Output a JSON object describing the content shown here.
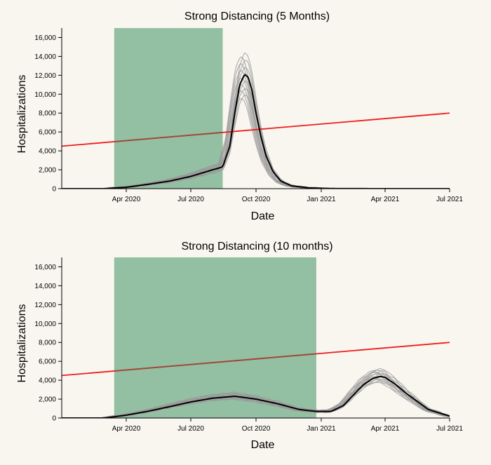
{
  "colors": {
    "background": "#f9f6ef",
    "distancing_band": "#93bfa2",
    "capacity_line": "#ee1c1c",
    "capacity_line_in_band": "#9a4a3a",
    "mean_line": "#000000",
    "ensemble_line": "#999999"
  },
  "chart_data": [
    {
      "type": "line",
      "title": "Strong Distancing (5 Months)",
      "xlabel": "Date",
      "ylabel": "Hospitalizations",
      "xlim": [
        "2020-01-01",
        "2021-07-01"
      ],
      "ylim": [
        0,
        17000
      ],
      "x_ticks": [
        "2020-04-01",
        "2020-07-01",
        "2020-10-01",
        "2021-01-01",
        "2021-04-01",
        "2021-07-01"
      ],
      "x_tick_labels": [
        "Apr 2020",
        "Jul 2020",
        "Oct 2020",
        "Jan 2021",
        "Apr 2021",
        "Jul 2021"
      ],
      "y_ticks": [
        0,
        2000,
        4000,
        6000,
        8000,
        10000,
        12000,
        14000,
        16000
      ],
      "y_tick_labels": [
        "0",
        "2,000",
        "4,000",
        "6,000",
        "8,000",
        "10,000",
        "12,000",
        "14,000",
        "16,000"
      ],
      "grid": false,
      "shaded_region": {
        "start": "2020-03-15",
        "end": "2020-08-15"
      },
      "capacity_line": {
        "x": [
          "2020-01-01",
          "2021-07-01"
        ],
        "y": [
          4500,
          8000
        ]
      },
      "mean_series": {
        "x": [
          "2020-03-01",
          "2020-04-01",
          "2020-05-01",
          "2020-06-01",
          "2020-07-01",
          "2020-08-01",
          "2020-08-15",
          "2020-08-25",
          "2020-09-01",
          "2020-09-08",
          "2020-09-15",
          "2020-09-20",
          "2020-09-25",
          "2020-10-01",
          "2020-10-08",
          "2020-10-15",
          "2020-10-25",
          "2020-11-05",
          "2020-11-20",
          "2020-12-15",
          "2021-01-15",
          "2021-04-01",
          "2021-07-01"
        ],
        "y": [
          0,
          150,
          450,
          800,
          1300,
          2000,
          2300,
          4500,
          8000,
          11000,
          12100,
          11800,
          10500,
          8000,
          5500,
          3500,
          1800,
          800,
          300,
          80,
          15,
          0,
          0
        ]
      },
      "ensemble": {
        "peak_min": 9600,
        "peak_max": 14400,
        "count": 14
      }
    },
    {
      "type": "line",
      "title": "Strong Distancing (10 months)",
      "xlabel": "Date",
      "ylabel": "Hospitalizations",
      "xlim": [
        "2020-01-01",
        "2021-07-01"
      ],
      "ylim": [
        0,
        17000
      ],
      "x_ticks": [
        "2020-04-01",
        "2020-07-01",
        "2020-10-01",
        "2021-01-01",
        "2021-04-01",
        "2021-07-01"
      ],
      "x_tick_labels": [
        "Apr 2020",
        "Jul 2020",
        "Oct 2020",
        "Jan 2021",
        "Apr 2021",
        "Jul 2021"
      ],
      "y_ticks": [
        0,
        2000,
        4000,
        6000,
        8000,
        10000,
        12000,
        14000,
        16000
      ],
      "y_tick_labels": [
        "0",
        "2,000",
        "4,000",
        "6,000",
        "8,000",
        "10,000",
        "12,000",
        "14,000",
        "16,000"
      ],
      "grid": false,
      "shaded_region": {
        "start": "2020-03-15",
        "end": "2020-12-25"
      },
      "capacity_line": {
        "x": [
          "2020-01-01",
          "2021-07-01"
        ],
        "y": [
          4500,
          8000
        ]
      },
      "mean_series": {
        "x": [
          "2020-03-01",
          "2020-04-01",
          "2020-05-01",
          "2020-06-01",
          "2020-07-01",
          "2020-08-01",
          "2020-09-01",
          "2020-10-01",
          "2020-11-01",
          "2020-12-01",
          "2020-12-25",
          "2021-01-15",
          "2021-02-01",
          "2021-02-15",
          "2021-03-01",
          "2021-03-15",
          "2021-03-25",
          "2021-04-01",
          "2021-04-15",
          "2021-05-01",
          "2021-06-01",
          "2021-07-01"
        ],
        "y": [
          0,
          300,
          700,
          1200,
          1700,
          2100,
          2300,
          2000,
          1500,
          900,
          700,
          700,
          1300,
          2400,
          3500,
          4200,
          4400,
          4300,
          3600,
          2600,
          900,
          200
        ]
      },
      "ensemble": {
        "peak_min": 3800,
        "peak_max": 5200,
        "count": 14
      }
    }
  ]
}
